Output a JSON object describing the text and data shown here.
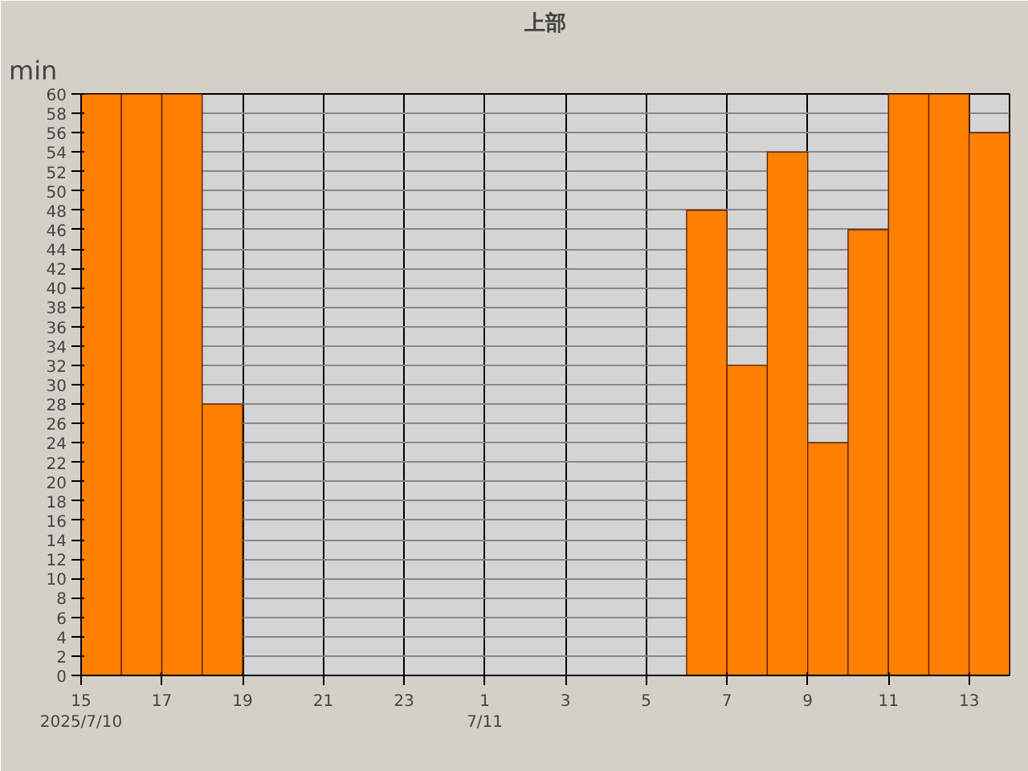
{
  "chart_data": {
    "type": "bar",
    "title": "上部",
    "ylabel": "min",
    "x": [
      "2025-07-10T15:30",
      "2025-07-10T16:30",
      "2025-07-10T17:30",
      "2025-07-10T18:30",
      "2025-07-10T19:30",
      "2025-07-10T20:30",
      "2025-07-10T21:30",
      "2025-07-10T22:30",
      "2025-07-10T23:30",
      "2025-07-11T00:30",
      "2025-07-11T01:30",
      "2025-07-11T02:30",
      "2025-07-11T03:30",
      "2025-07-11T04:30",
      "2025-07-11T05:30",
      "2025-07-11T06:30",
      "2025-07-11T07:30",
      "2025-07-11T08:30",
      "2025-07-11T09:30",
      "2025-07-11T10:30",
      "2025-07-11T11:30",
      "2025-07-11T12:30",
      "2025-07-11T13:30"
    ],
    "values": [
      60,
      60,
      60,
      28,
      0,
      0,
      0,
      0,
      0,
      0,
      0,
      0,
      0,
      0,
      0,
      48,
      32,
      54,
      24,
      46,
      60,
      60,
      56
    ],
    "color": "#ff8000",
    "xlim": [
      "2025-07-10T15:00",
      "2025-07-11T14:00"
    ],
    "xticks": [
      {
        "value": "2025-07-10T15:00",
        "label": "15"
      },
      {
        "value": "2025-07-10T17:00",
        "label": "17"
      },
      {
        "value": "2025-07-10T19:00",
        "label": "19"
      },
      {
        "value": "2025-07-10T21:00",
        "label": "21"
      },
      {
        "value": "2025-07-10T23:00",
        "label": "23"
      },
      {
        "value": "2025-07-11T01:00",
        "label": "1"
      },
      {
        "value": "2025-07-11T03:00",
        "label": "3"
      },
      {
        "value": "2025-07-11T05:00",
        "label": "5"
      },
      {
        "value": "2025-07-11T07:00",
        "label": "7"
      },
      {
        "value": "2025-07-11T09:00",
        "label": "9"
      },
      {
        "value": "2025-07-11T11:00",
        "label": "11"
      },
      {
        "value": "2025-07-11T13:00",
        "label": "13"
      }
    ],
    "ylim": [
      0,
      60
    ],
    "yticks": [
      0,
      2,
      4,
      6,
      8,
      10,
      12,
      14,
      16,
      18,
      20,
      22,
      24,
      26,
      28,
      30,
      32,
      34,
      36,
      38,
      40,
      42,
      44,
      46,
      48,
      50,
      52,
      54,
      56,
      58,
      60
    ],
    "grid": true,
    "annotations": [
      "2025/7/10",
      "7/11"
    ]
  }
}
